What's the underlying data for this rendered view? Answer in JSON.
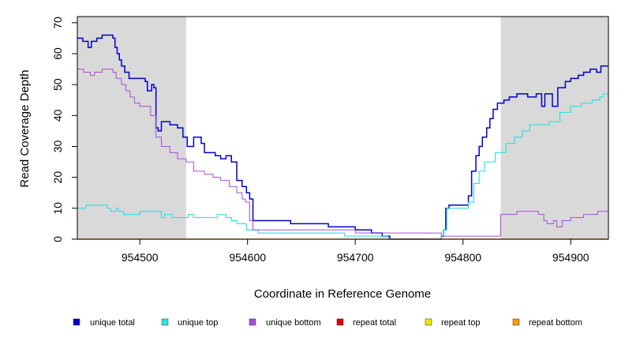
{
  "chart_data": {
    "type": "line",
    "step": true,
    "title": "",
    "xlabel": "Coordinate in Reference Genome",
    "ylabel": "Read Coverage Depth",
    "xlim": [
      954442,
      954935
    ],
    "ylim": [
      0,
      72
    ],
    "xticks": [
      954500,
      954600,
      954700,
      954800,
      954900
    ],
    "yticks": [
      0,
      10,
      20,
      30,
      40,
      50,
      60,
      70
    ],
    "shaded_regions": [
      {
        "x0": 954442,
        "x1": 954543
      },
      {
        "x0": 954835,
        "x1": 954935
      }
    ],
    "shade_color": "#d9d9d9",
    "series": [
      {
        "name": "unique total",
        "color": "#0000cc",
        "width": 1.5,
        "points": [
          [
            954442,
            65
          ],
          [
            954447,
            64
          ],
          [
            954452,
            62
          ],
          [
            954455,
            64
          ],
          [
            954460,
            65
          ],
          [
            954465,
            66
          ],
          [
            954475,
            65
          ],
          [
            954477,
            62
          ],
          [
            954479,
            60
          ],
          [
            954481,
            58
          ],
          [
            954483,
            56
          ],
          [
            954486,
            54
          ],
          [
            954490,
            52
          ],
          [
            954505,
            51
          ],
          [
            954507,
            48
          ],
          [
            954511,
            50
          ],
          [
            954513,
            49
          ],
          [
            954515,
            36
          ],
          [
            954517,
            35
          ],
          [
            954520,
            38
          ],
          [
            954528,
            37
          ],
          [
            954535,
            36
          ],
          [
            954540,
            33
          ],
          [
            954544,
            30
          ],
          [
            954550,
            33
          ],
          [
            954557,
            31
          ],
          [
            954560,
            28
          ],
          [
            954570,
            27
          ],
          [
            954575,
            26
          ],
          [
            954580,
            27
          ],
          [
            954585,
            25
          ],
          [
            954590,
            19
          ],
          [
            954595,
            17
          ],
          [
            954599,
            15
          ],
          [
            954602,
            13
          ],
          [
            954605,
            6
          ],
          [
            954640,
            5
          ],
          [
            954675,
            4
          ],
          [
            954700,
            3
          ],
          [
            954715,
            2
          ],
          [
            954725,
            1
          ],
          [
            954732,
            0
          ],
          [
            954780,
            1
          ],
          [
            954782,
            3
          ],
          [
            954784,
            10
          ],
          [
            954787,
            11
          ],
          [
            954805,
            14
          ],
          [
            954808,
            22
          ],
          [
            954812,
            27
          ],
          [
            954815,
            30
          ],
          [
            954818,
            33
          ],
          [
            954822,
            36
          ],
          [
            954825,
            39
          ],
          [
            954828,
            42
          ],
          [
            954832,
            44
          ],
          [
            954838,
            45
          ],
          [
            954843,
            46
          ],
          [
            954850,
            47
          ],
          [
            954860,
            46
          ],
          [
            954868,
            47
          ],
          [
            954873,
            43
          ],
          [
            954876,
            47
          ],
          [
            954883,
            43
          ],
          [
            954888,
            49
          ],
          [
            954895,
            51
          ],
          [
            954900,
            52
          ],
          [
            954907,
            53
          ],
          [
            954912,
            54
          ],
          [
            954918,
            55
          ],
          [
            954924,
            54
          ],
          [
            954928,
            56
          ],
          [
            954935,
            56
          ]
        ]
      },
      {
        "name": "unique top",
        "color": "#33e0e0",
        "width": 1.2,
        "points": [
          [
            954442,
            10
          ],
          [
            954450,
            11
          ],
          [
            954470,
            10
          ],
          [
            954473,
            9
          ],
          [
            954478,
            10
          ],
          [
            954480,
            9
          ],
          [
            954485,
            8
          ],
          [
            954500,
            9
          ],
          [
            954520,
            7
          ],
          [
            954523,
            8
          ],
          [
            954530,
            7
          ],
          [
            954545,
            8
          ],
          [
            954550,
            7
          ],
          [
            954572,
            8
          ],
          [
            954580,
            7
          ],
          [
            954585,
            6
          ],
          [
            954590,
            5
          ],
          [
            954596,
            5
          ],
          [
            954599,
            3
          ],
          [
            954610,
            2
          ],
          [
            954645,
            2
          ],
          [
            954690,
            1
          ],
          [
            954722,
            1
          ],
          [
            954730,
            0
          ],
          [
            954780,
            1
          ],
          [
            954782,
            3
          ],
          [
            954785,
            10
          ],
          [
            954805,
            12
          ],
          [
            954810,
            18
          ],
          [
            954815,
            22
          ],
          [
            954820,
            25
          ],
          [
            954830,
            28
          ],
          [
            954840,
            31
          ],
          [
            954848,
            33
          ],
          [
            954855,
            35
          ],
          [
            954862,
            37
          ],
          [
            954880,
            38
          ],
          [
            954890,
            41
          ],
          [
            954900,
            43
          ],
          [
            954910,
            44
          ],
          [
            954920,
            45
          ],
          [
            954927,
            46
          ],
          [
            954930,
            47
          ],
          [
            954935,
            47
          ]
        ]
      },
      {
        "name": "unique bottom",
        "color": "#a64fd6",
        "width": 1.0,
        "points": [
          [
            954442,
            55
          ],
          [
            954448,
            54
          ],
          [
            954454,
            53
          ],
          [
            954458,
            54
          ],
          [
            954465,
            55
          ],
          [
            954475,
            54
          ],
          [
            954478,
            52
          ],
          [
            954483,
            50
          ],
          [
            954487,
            48
          ],
          [
            954491,
            46
          ],
          [
            954495,
            44
          ],
          [
            954500,
            43
          ],
          [
            954510,
            40
          ],
          [
            954515,
            33
          ],
          [
            954520,
            30
          ],
          [
            954528,
            28
          ],
          [
            954535,
            26
          ],
          [
            954543,
            25
          ],
          [
            954550,
            22
          ],
          [
            954560,
            21
          ],
          [
            954568,
            20
          ],
          [
            954575,
            19
          ],
          [
            954583,
            17
          ],
          [
            954590,
            15
          ],
          [
            954595,
            13
          ],
          [
            954598,
            12
          ],
          [
            954602,
            6
          ],
          [
            954605,
            3
          ],
          [
            954700,
            2
          ],
          [
            954780,
            1
          ],
          [
            954800,
            1
          ],
          [
            954835,
            8
          ],
          [
            954850,
            9
          ],
          [
            954870,
            8
          ],
          [
            954875,
            6
          ],
          [
            954878,
            5
          ],
          [
            954884,
            6
          ],
          [
            954887,
            4
          ],
          [
            954892,
            6
          ],
          [
            954900,
            7
          ],
          [
            954912,
            8
          ],
          [
            954925,
            9
          ],
          [
            954935,
            9
          ]
        ]
      },
      {
        "name": "repeat total",
        "color": "#e00000",
        "width": 1.0,
        "points": [
          [
            954442,
            0
          ],
          [
            954935,
            0
          ]
        ]
      },
      {
        "name": "repeat top",
        "color": "#e6e600",
        "width": 1.0,
        "points": [
          [
            954442,
            0
          ],
          [
            954935,
            0
          ]
        ]
      },
      {
        "name": "repeat bottom",
        "color": "#ff9900",
        "width": 1.5,
        "points": [
          [
            954442,
            0
          ],
          [
            954935,
            0
          ]
        ]
      }
    ],
    "legend": [
      {
        "label": "unique total",
        "color": "#0000cc"
      },
      {
        "label": "unique top",
        "color": "#33e0e0"
      },
      {
        "label": "unique bottom",
        "color": "#a64fd6"
      },
      {
        "label": "repeat total",
        "color": "#e00000"
      },
      {
        "label": "repeat top",
        "color": "#e6e600"
      },
      {
        "label": "repeat bottom",
        "color": "#ff9900"
      }
    ]
  }
}
